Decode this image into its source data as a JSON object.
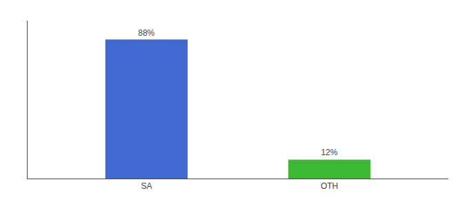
{
  "chart_data": {
    "type": "bar",
    "categories": [
      "SA",
      "OTH"
    ],
    "values": [
      88,
      12
    ],
    "value_labels": [
      "88%",
      "12%"
    ],
    "colors": [
      "#4169d4",
      "#3cb832"
    ],
    "ylim": [
      0,
      100
    ],
    "data_labels": true,
    "tick_labels": "x",
    "grid": false
  }
}
